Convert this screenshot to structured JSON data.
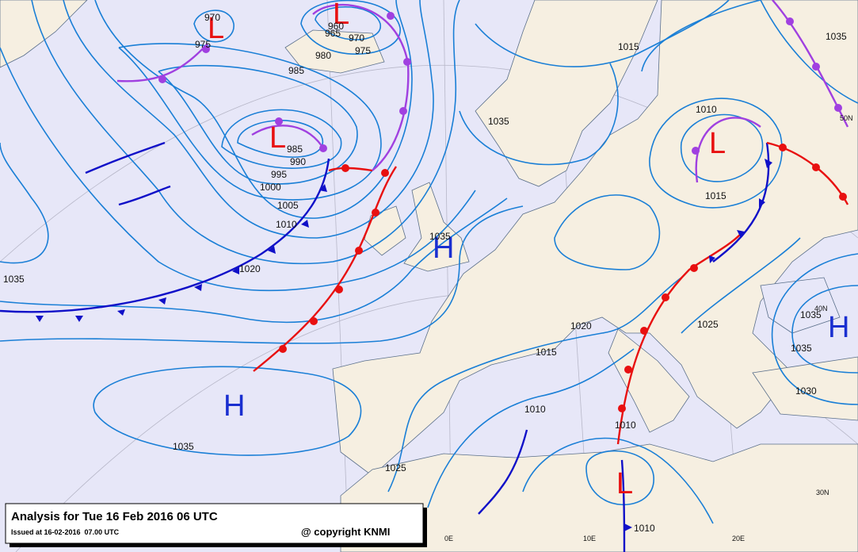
{
  "header": {
    "title": "Analysis for Tue 16 Feb 2016 06 UTC",
    "issued": "Issued at 16-02-2016  07.00 UTC",
    "copyright": "@ copyright KNMI"
  },
  "centers": [
    {
      "label": "L"
    },
    {
      "label": "L"
    },
    {
      "label": "L"
    },
    {
      "label": "H"
    },
    {
      "label": "H"
    },
    {
      "label": "L"
    },
    {
      "label": "H"
    },
    {
      "label": "L"
    }
  ],
  "isobar_labels": [
    970,
    975,
    960,
    965,
    970,
    975,
    980,
    985,
    985,
    990,
    995,
    1000,
    1005,
    1010,
    1020,
    1035,
    1015,
    1035,
    1035,
    1010,
    1015,
    1035,
    1025,
    1020,
    1015,
    1010,
    1010,
    1035,
    1025,
    1010,
    1035,
    1035,
    1030
  ],
  "grid_labels": [
    "50N",
    "40N",
    "30N",
    "0E",
    "10E",
    "20E"
  ]
}
